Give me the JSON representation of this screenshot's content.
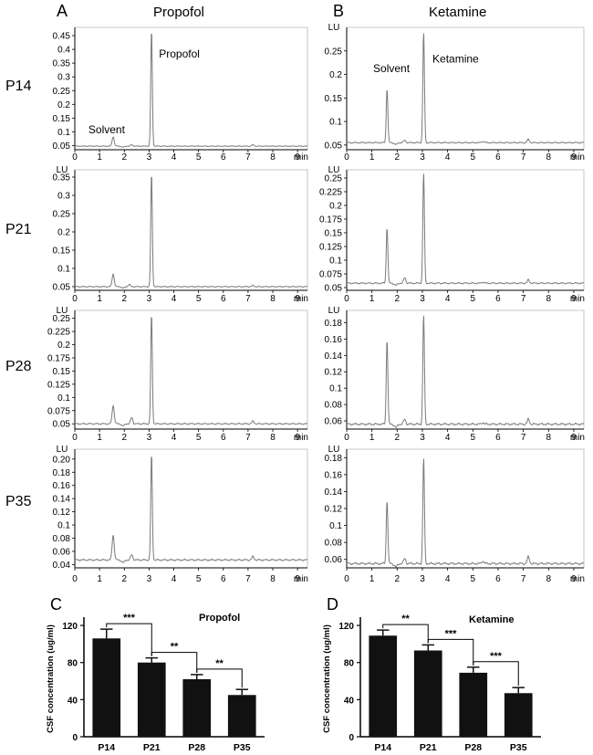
{
  "colors": {
    "trace": "#7a7a7a",
    "axis": "#000000",
    "bar": "#111111",
    "frame": "#b8b8b8"
  },
  "panels": {
    "A": {
      "letter": "A",
      "title": "Propofol"
    },
    "B": {
      "letter": "B",
      "title": "Ketamine"
    },
    "C": {
      "letter": "C"
    },
    "D": {
      "letter": "D"
    }
  },
  "rows": [
    "P14",
    "P21",
    "P28",
    "P35"
  ],
  "chart_data": [
    {
      "id": "A-P14",
      "type": "line",
      "panel": "A",
      "row": "P14",
      "unit_label": "",
      "xlabel": "min",
      "xlim": [
        0,
        9.4
      ],
      "ylim": [
        0.035,
        0.48
      ],
      "xticks": [
        0,
        1,
        2,
        3,
        4,
        5,
        6,
        7,
        8,
        9
      ],
      "yticks": [
        0.05,
        0.1,
        0.15,
        0.2,
        0.25,
        0.3,
        0.35,
        0.4,
        0.45
      ],
      "ytick_labels": [
        "0.05",
        "0.1",
        "0.15",
        "0.2",
        "0.25",
        "0.3",
        "0.35",
        "0.4",
        "0.45"
      ],
      "baseline": 0.048,
      "peaks": [
        {
          "x": 1.55,
          "h": 0.082
        },
        {
          "x": 2.3,
          "h": 0.053
        },
        {
          "x": 3.1,
          "h": 0.47
        },
        {
          "x": 7.2,
          "h": 0.053
        }
      ],
      "annotations": [
        {
          "text": "Solvent",
          "x": 0.55,
          "y": 0.095
        },
        {
          "text": "Propofol",
          "x": 3.4,
          "y": 0.37
        }
      ]
    },
    {
      "id": "B-P14",
      "type": "line",
      "panel": "B",
      "row": "P14",
      "unit_label": "LU",
      "xlabel": "min",
      "xlim": [
        0,
        9.4
      ],
      "ylim": [
        0.04,
        0.3
      ],
      "xticks": [
        0,
        1,
        2,
        3,
        4,
        5,
        6,
        7,
        8,
        9
      ],
      "yticks": [
        0.05,
        0.1,
        0.15,
        0.2,
        0.25
      ],
      "ytick_labels": [
        "0.05",
        "0.1",
        "0.15",
        "0.2",
        "0.25"
      ],
      "baseline": 0.055,
      "peaks": [
        {
          "x": 1.6,
          "h": 0.17
        },
        {
          "x": 2.3,
          "h": 0.06
        },
        {
          "x": 3.05,
          "h": 0.29
        },
        {
          "x": 5.4,
          "h": 0.058
        },
        {
          "x": 7.2,
          "h": 0.062
        }
      ],
      "annotations": [
        {
          "text": "Solvent",
          "x": 1.05,
          "y": 0.205
        },
        {
          "text": "Ketamine",
          "x": 3.4,
          "y": 0.225
        }
      ]
    },
    {
      "id": "A-P21",
      "type": "line",
      "panel": "A",
      "row": "P21",
      "unit_label": "LU",
      "xlabel": "min",
      "xlim": [
        0,
        9.4
      ],
      "ylim": [
        0.04,
        0.37
      ],
      "xticks": [
        0,
        1,
        2,
        3,
        4,
        5,
        6,
        7,
        8,
        9
      ],
      "yticks": [
        0.05,
        0.1,
        0.15,
        0.2,
        0.25,
        0.3,
        0.35
      ],
      "ytick_labels": [
        "0.05",
        "0.1",
        "0.15",
        "0.2",
        "0.25",
        "0.3",
        "0.35"
      ],
      "baseline": 0.05,
      "peaks": [
        {
          "x": 1.55,
          "h": 0.085
        },
        {
          "x": 2.2,
          "h": 0.056
        },
        {
          "x": 3.1,
          "h": 0.36
        },
        {
          "x": 7.2,
          "h": 0.053
        }
      ],
      "annotations": []
    },
    {
      "id": "B-P21",
      "type": "line",
      "panel": "B",
      "row": "P21",
      "unit_label": "LU",
      "xlabel": "min",
      "xlim": [
        0,
        9.4
      ],
      "ylim": [
        0.045,
        0.265
      ],
      "xticks": [
        0,
        1,
        2,
        3,
        4,
        5,
        6,
        7,
        8,
        9
      ],
      "yticks": [
        0.05,
        0.075,
        0.1,
        0.125,
        0.15,
        0.175,
        0.2,
        0.225,
        0.25
      ],
      "ytick_labels": [
        "0.05",
        "0.075",
        "0.1",
        "0.125",
        "0.15",
        "0.175",
        "0.2",
        "0.225",
        "0.25"
      ],
      "baseline": 0.058,
      "peaks": [
        {
          "x": 1.6,
          "h": 0.16
        },
        {
          "x": 2.3,
          "h": 0.068
        },
        {
          "x": 3.05,
          "h": 0.26
        },
        {
          "x": 5.4,
          "h": 0.06
        },
        {
          "x": 7.2,
          "h": 0.064
        }
      ],
      "annotations": []
    },
    {
      "id": "A-P28",
      "type": "line",
      "panel": "A",
      "row": "P28",
      "unit_label": "LU",
      "xlabel": "min",
      "xlim": [
        0,
        9.4
      ],
      "ylim": [
        0.04,
        0.265
      ],
      "xticks": [
        0,
        1,
        2,
        3,
        4,
        5,
        6,
        7,
        8,
        9
      ],
      "yticks": [
        0.05,
        0.075,
        0.1,
        0.125,
        0.15,
        0.175,
        0.2,
        0.225,
        0.25
      ],
      "ytick_labels": [
        "0.05",
        "0.075",
        "0.1",
        "0.125",
        "0.15",
        "0.175",
        "0.2",
        "0.225",
        "0.25"
      ],
      "baseline": 0.05,
      "peaks": [
        {
          "x": 1.55,
          "h": 0.085
        },
        {
          "x": 2.3,
          "h": 0.062
        },
        {
          "x": 3.1,
          "h": 0.258
        },
        {
          "x": 7.2,
          "h": 0.055
        }
      ],
      "annotations": []
    },
    {
      "id": "B-P28",
      "type": "line",
      "panel": "B",
      "row": "P28",
      "unit_label": "LU",
      "xlabel": "min",
      "xlim": [
        0,
        9.4
      ],
      "ylim": [
        0.05,
        0.195
      ],
      "xticks": [
        0,
        1,
        2,
        3,
        4,
        5,
        6,
        7,
        8,
        9
      ],
      "yticks": [
        0.06,
        0.08,
        0.1,
        0.12,
        0.14,
        0.16,
        0.18
      ],
      "ytick_labels": [
        "0.06",
        "0.08",
        "0.1",
        "0.12",
        "0.14",
        "0.16",
        "0.18"
      ],
      "baseline": 0.056,
      "peaks": [
        {
          "x": 1.6,
          "h": 0.16
        },
        {
          "x": 2.3,
          "h": 0.062
        },
        {
          "x": 3.05,
          "h": 0.19
        },
        {
          "x": 5.4,
          "h": 0.058
        },
        {
          "x": 7.2,
          "h": 0.062
        }
      ],
      "annotations": []
    },
    {
      "id": "A-P35",
      "type": "line",
      "panel": "A",
      "row": "P35",
      "unit_label": "LU",
      "xlabel": "min",
      "xlim": [
        0,
        9.4
      ],
      "ylim": [
        0.035,
        0.215
      ],
      "xticks": [
        0,
        1,
        2,
        3,
        4,
        5,
        6,
        7,
        8,
        9
      ],
      "yticks": [
        0.04,
        0.06,
        0.08,
        0.1,
        0.12,
        0.14,
        0.16,
        0.18,
        0.2
      ],
      "ytick_labels": [
        "0.04",
        "0.06",
        "0.08",
        "0.1",
        "0.12",
        "0.14",
        "0.16",
        "0.18",
        "0.20"
      ],
      "baseline": 0.047,
      "peaks": [
        {
          "x": 1.55,
          "h": 0.085
        },
        {
          "x": 2.3,
          "h": 0.055
        },
        {
          "x": 3.1,
          "h": 0.208
        },
        {
          "x": 7.2,
          "h": 0.052
        }
      ],
      "annotations": []
    },
    {
      "id": "B-P35",
      "type": "line",
      "panel": "B",
      "row": "P35",
      "unit_label": "LU",
      "xlabel": "min",
      "xlim": [
        0,
        9.4
      ],
      "ylim": [
        0.05,
        0.19
      ],
      "xticks": [
        0,
        1,
        2,
        3,
        4,
        5,
        6,
        7,
        8,
        9
      ],
      "yticks": [
        0.06,
        0.08,
        0.1,
        0.12,
        0.14,
        0.16,
        0.18
      ],
      "ytick_labels": [
        "0.06",
        "0.08",
        "0.1",
        "0.12",
        "0.14",
        "0.16",
        "0.18"
      ],
      "baseline": 0.055,
      "peaks": [
        {
          "x": 1.6,
          "h": 0.13
        },
        {
          "x": 2.3,
          "h": 0.061
        },
        {
          "x": 3.05,
          "h": 0.18
        },
        {
          "x": 5.4,
          "h": 0.058
        },
        {
          "x": 7.2,
          "h": 0.063
        }
      ],
      "annotations": []
    },
    {
      "id": "C",
      "type": "bar",
      "panel": "C",
      "title": "Propofol",
      "ylabel": "CSF concentration (ug/ml)",
      "xlabel": "",
      "categories": [
        "P14",
        "P21",
        "P28",
        "P35"
      ],
      "values": [
        106,
        80,
        62,
        45
      ],
      "errors": [
        10,
        5,
        5,
        6
      ],
      "ylim": [
        0,
        125
      ],
      "yticks": [
        0,
        40,
        80,
        120
      ],
      "significance": [
        {
          "from": 0,
          "to": 1,
          "label": "***"
        },
        {
          "from": 1,
          "to": 2,
          "label": "**"
        },
        {
          "from": 2,
          "to": 3,
          "label": "**"
        }
      ]
    },
    {
      "id": "D",
      "type": "bar",
      "panel": "D",
      "title": "Ketamine",
      "ylabel": "CSF concentration (ug/ml)",
      "xlabel": "",
      "categories": [
        "P14",
        "P21",
        "P28",
        "P35"
      ],
      "values": [
        109,
        93,
        69,
        47
      ],
      "errors": [
        6,
        6,
        6,
        6
      ],
      "ylim": [
        0,
        125
      ],
      "yticks": [
        0,
        40,
        80,
        120
      ],
      "significance": [
        {
          "from": 0,
          "to": 1,
          "label": "**"
        },
        {
          "from": 1,
          "to": 2,
          "label": "***"
        },
        {
          "from": 2,
          "to": 3,
          "label": "***"
        }
      ]
    }
  ]
}
